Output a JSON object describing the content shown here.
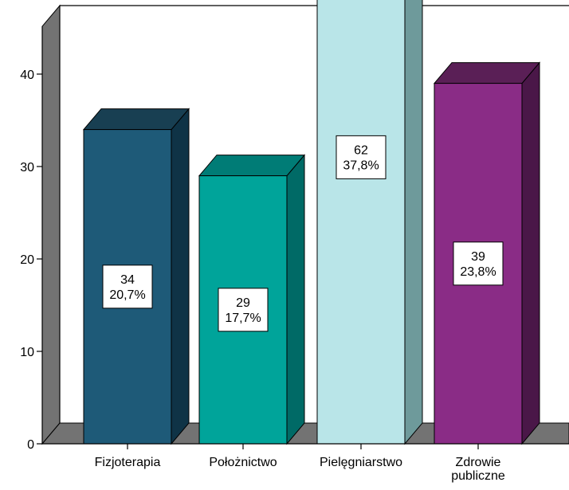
{
  "chart_data": {
    "type": "bar",
    "title": "",
    "xlabel": "",
    "ylabel": "",
    "categories": [
      [
        "Fizjoterapia"
      ],
      [
        "Położnictwo"
      ],
      [
        "Pielęgniarstwo"
      ],
      [
        "Zdrowie",
        "publiczne"
      ]
    ],
    "values": [
      34,
      29,
      62,
      39
    ],
    "value_labels": [
      "34",
      "29",
      "62",
      "39"
    ],
    "percent_labels": [
      "20,7%",
      "17,7%",
      "37,8%",
      "23,8%"
    ],
    "ylim": [
      0,
      45
    ],
    "yticks": [
      0,
      10,
      20,
      30,
      40
    ],
    "ytick_labels": [
      "0",
      "10",
      "20",
      "30",
      "40"
    ],
    "grid": false,
    "legend": "none",
    "colors": {
      "bars": [
        {
          "front": "#1e5a78",
          "side": "#0f3346",
          "top": "#183f52"
        },
        {
          "front": "#00a49a",
          "side": "#006a66",
          "top": "#007c76"
        },
        {
          "front": "#b9e5e8",
          "side": "#6e9a9b",
          "top": "#7fa5a5"
        },
        {
          "front": "#8a2c86",
          "side": "#4a1748",
          "top": "#5a1f56"
        }
      ],
      "wall": "#737373",
      "floor": "#737373",
      "label_box": "#ffffff",
      "outline": "#000000"
    }
  }
}
